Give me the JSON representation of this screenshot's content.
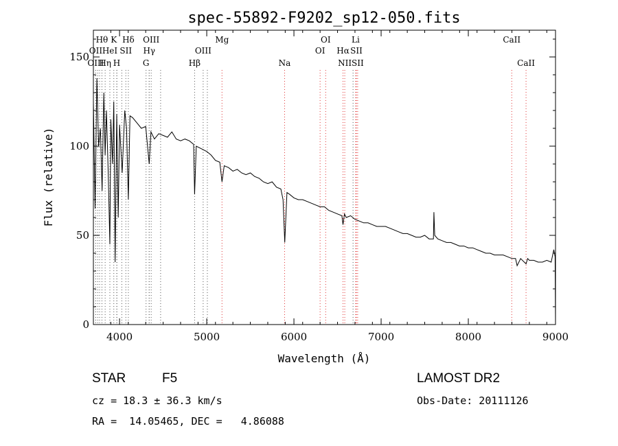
{
  "chart_data": {
    "type": "line",
    "title": "spec-55892-F9202_sp12-050.fits",
    "xlabel": "Wavelength (Å)",
    "ylabel": "Flux (relative)",
    "xlim": [
      3700,
      9000
    ],
    "ylim": [
      0,
      165
    ],
    "xticks": [
      4000,
      5000,
      6000,
      7000,
      8000,
      9000
    ],
    "yticks": [
      0,
      50,
      100,
      150
    ],
    "grid": false,
    "series": [
      {
        "x": [
          3700,
          3720,
          3740,
          3760,
          3780,
          3800,
          3820,
          3835,
          3850,
          3870,
          3889,
          3900,
          3920,
          3934,
          3950,
          3968,
          3985,
          4000,
          4030,
          4060,
          4080,
          4101,
          4120,
          4150,
          4200,
          4250,
          4300,
          4340,
          4360,
          4400,
          4450,
          4500,
          4550,
          4600,
          4650,
          4700,
          4750,
          4800,
          4850,
          4861,
          4880,
          4920,
          5000,
          5050,
          5100,
          5150,
          5175,
          5200,
          5250,
          5300,
          5350,
          5400,
          5450,
          5500,
          5550,
          5600,
          5650,
          5700,
          5750,
          5800,
          5850,
          5875,
          5895,
          5920,
          5950,
          6000,
          6050,
          6100,
          6150,
          6200,
          6250,
          6300,
          6350,
          6400,
          6450,
          6500,
          6550,
          6563,
          6580,
          6600,
          6650,
          6700,
          6750,
          6800,
          6850,
          6900,
          6950,
          7000,
          7050,
          7100,
          7150,
          7200,
          7250,
          7300,
          7350,
          7400,
          7450,
          7500,
          7550,
          7600,
          7605,
          7615,
          7650,
          7700,
          7750,
          7800,
          7850,
          7900,
          7950,
          8000,
          8050,
          8100,
          8150,
          8200,
          8250,
          8300,
          8350,
          8400,
          8450,
          8500,
          8542,
          8560,
          8600,
          8662,
          8680,
          8700,
          8750,
          8800,
          8850,
          8900,
          8950,
          8980,
          8995,
          9000
        ],
        "y": [
          125,
          65,
          138,
          100,
          110,
          75,
          130,
          95,
          120,
          85,
          45,
          115,
          90,
          125,
          35,
          118,
          60,
          112,
          85,
          120,
          110,
          70,
          117,
          116,
          113,
          110,
          111,
          90,
          108,
          104,
          107,
          106,
          105,
          108,
          104,
          103,
          104,
          103,
          101,
          73,
          100,
          99,
          97,
          95,
          92,
          91,
          80,
          89,
          88,
          86,
          87,
          85,
          84,
          85,
          83,
          82,
          80,
          79,
          80,
          77,
          76,
          70,
          46,
          74,
          73,
          71,
          70,
          70,
          69,
          68,
          67,
          66,
          66,
          64,
          63,
          62,
          61,
          56,
          62,
          60,
          61,
          59,
          58,
          57,
          57,
          56,
          55,
          55,
          55,
          54,
          53,
          52,
          51,
          51,
          50,
          49,
          49,
          50,
          48,
          48,
          63,
          50,
          48,
          47,
          46,
          46,
          45,
          44,
          44,
          43,
          43,
          42,
          41,
          40,
          40,
          39,
          39,
          39,
          38,
          37,
          37,
          33,
          37,
          34,
          37,
          36,
          36,
          35,
          35,
          36,
          35,
          42,
          38,
          0
        ]
      }
    ],
    "spectral_lines": [
      {
        "label": "Hθ",
        "wl": 3798,
        "row": 1,
        "color": "black"
      },
      {
        "label": "K",
        "wl": 3934,
        "row": 1,
        "color": "black"
      },
      {
        "label": "Hδ",
        "wl": 4101,
        "row": 1,
        "color": "black"
      },
      {
        "label": "OIII",
        "wl": 4363,
        "row": 1,
        "color": "black"
      },
      {
        "label": "Mg",
        "wl": 5175,
        "row": 1,
        "color": "red"
      },
      {
        "label": "OI",
        "wl": 6364,
        "row": 1,
        "color": "red"
      },
      {
        "label": "Li",
        "wl": 6708,
        "row": 1,
        "color": "red"
      },
      {
        "label": "CaII",
        "wl": 8498,
        "row": 1,
        "color": "red"
      },
      {
        "label": "OII",
        "wl": 3727,
        "row": 2,
        "color": "black"
      },
      {
        "label": "HeI",
        "wl": 3889,
        "row": 2,
        "color": "black"
      },
      {
        "label": "SII",
        "wl": 4072,
        "row": 2,
        "color": "black"
      },
      {
        "label": "Hγ",
        "wl": 4340,
        "row": 2,
        "color": "black"
      },
      {
        "label": "OIII",
        "wl": 4959,
        "row": 2,
        "color": "black"
      },
      {
        "label": "OI",
        "wl": 6300,
        "row": 2,
        "color": "red"
      },
      {
        "label": "Hα",
        "wl": 6563,
        "row": 2,
        "color": "red"
      },
      {
        "label": "SII",
        "wl": 6716,
        "row": 2,
        "color": "red"
      },
      {
        "label": "OIII",
        "wl": 3727,
        "row": 3,
        "color": "black"
      },
      {
        "label": "Hη",
        "wl": 3835,
        "row": 3,
        "color": "black"
      },
      {
        "label": "H",
        "wl": 3968,
        "row": 3,
        "color": "black"
      },
      {
        "label": "G",
        "wl": 4304,
        "row": 3,
        "color": "black"
      },
      {
        "label": "Hβ",
        "wl": 4861,
        "row": 3,
        "color": "black"
      },
      {
        "label": "Na",
        "wl": 5893,
        "row": 3,
        "color": "red"
      },
      {
        "label": "NII",
        "wl": 6583,
        "row": 3,
        "color": "red"
      },
      {
        "label": "SII",
        "wl": 6731,
        "row": 3,
        "color": "red"
      },
      {
        "label": "CaII",
        "wl": 8662,
        "row": 3,
        "color": "red"
      }
    ],
    "extra_dotted_lines": [
      3750,
      3771,
      3889,
      3970,
      4026,
      4340,
      4471,
      5007,
      6678
    ]
  },
  "info": {
    "object_class": "STAR",
    "subclass": "F5",
    "survey": "LAMOST DR2",
    "cz": "cz = 18.3 ± 36.3 km/s",
    "obs_date": "Obs-Date: 20111126",
    "coords": "RA =  14.05465, DEC =   4.86088"
  },
  "colors": {
    "spectrum": "#000000",
    "red_line": "#e03030",
    "black_line": "#555555"
  }
}
